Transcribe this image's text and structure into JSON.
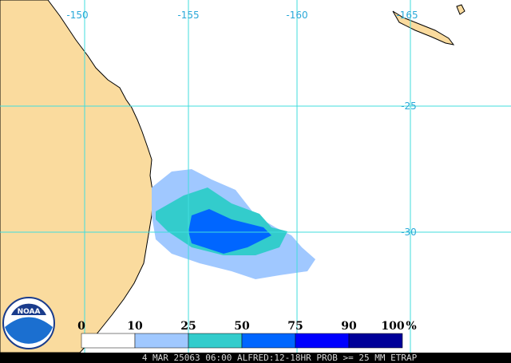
{
  "map": {
    "lon_labels": [
      "-150",
      "-155",
      "-160",
      "-165"
    ],
    "lat_labels": [
      "-25",
      "-30"
    ],
    "legend": {
      "labels": [
        "0",
        "10",
        "25",
        "50",
        "75",
        "90",
        "100"
      ],
      "unit": "%",
      "colors": [
        "#ffffff",
        "#a0c8ff",
        "#33cccc",
        "#0066ff",
        "#0000ff",
        "#000099"
      ]
    },
    "caption": "4 MAR 25063 06:00 ALFRED:12-18HR PROB >= 25 MM ETRAP",
    "logo": "NOAA"
  }
}
